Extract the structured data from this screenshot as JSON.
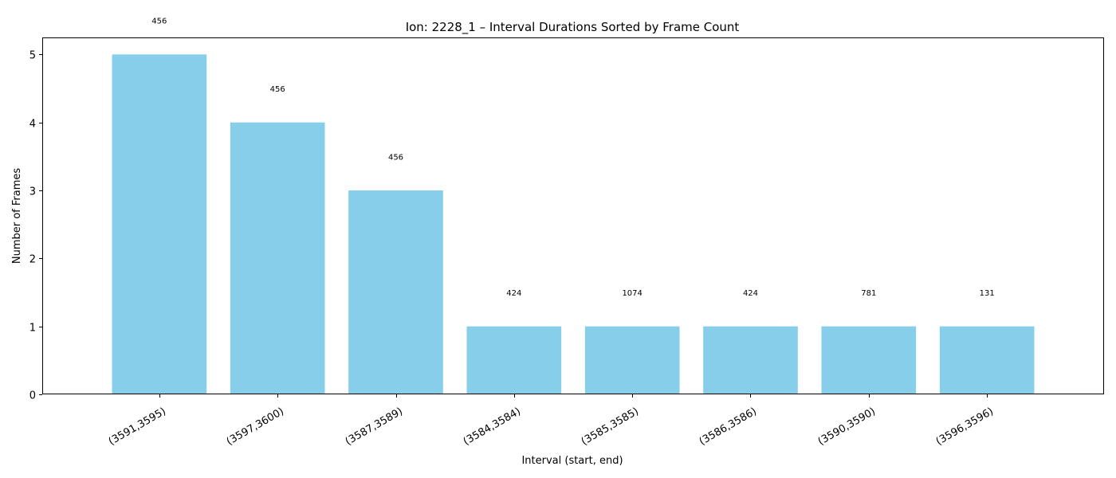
{
  "chart_data": {
    "type": "bar",
    "title": "Ion: 2228_1 – Interval Durations Sorted by Frame Count",
    "xlabel": "Interval (start, end)",
    "ylabel": "Number of Frames",
    "categories": [
      "(3591,3595)",
      "(3597,3600)",
      "(3587,3589)",
      "(3584,3584)",
      "(3585,3585)",
      "(3586,3586)",
      "(3590,3590)",
      "(3596,3596)"
    ],
    "values": [
      5,
      4,
      3,
      1,
      1,
      1,
      1,
      1
    ],
    "data_labels": [
      "456",
      "456",
      "456",
      "424",
      "1074",
      "424",
      "781",
      "131"
    ],
    "yticks": [
      0,
      1,
      2,
      3,
      4,
      5
    ],
    "ylim": [
      0,
      5.25
    ],
    "bar_color": "#87CEEB",
    "grid": false,
    "legend": "none"
  }
}
